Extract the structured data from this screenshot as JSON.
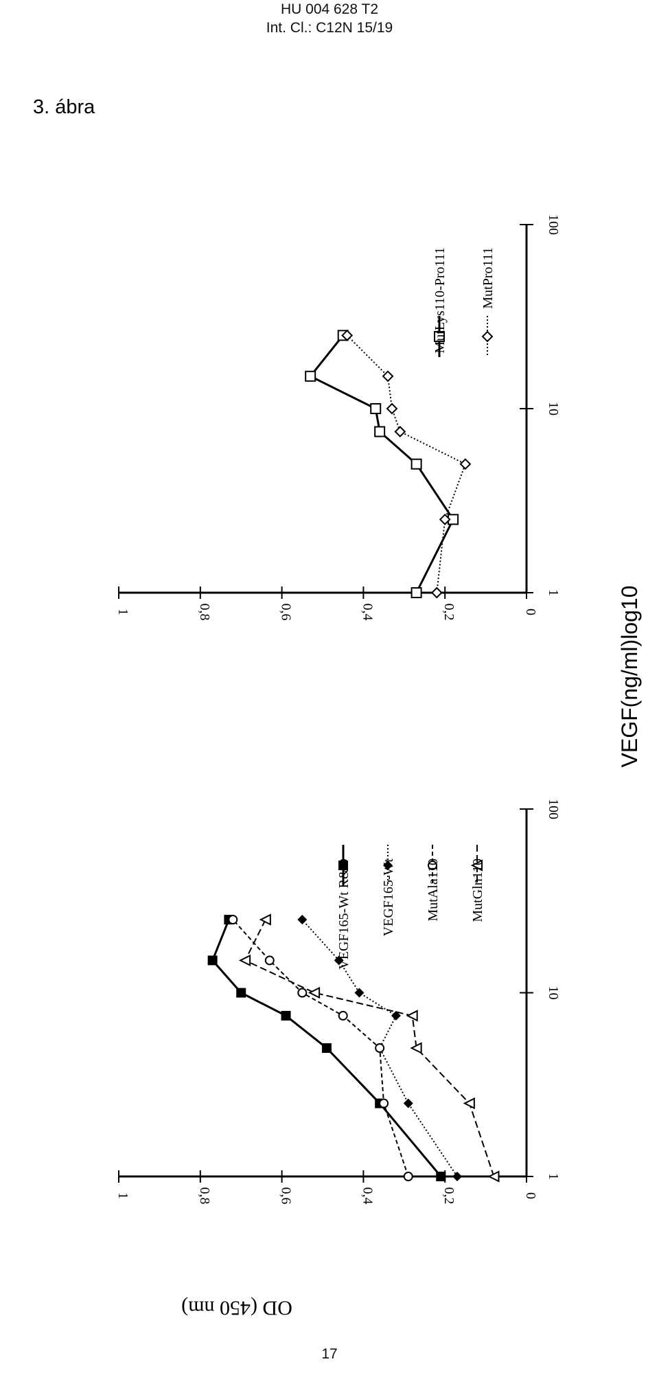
{
  "header": {
    "doc_number": "HU 004 628 T2",
    "classification": "Int. Cl.: C12N 15/19"
  },
  "figure_label": "3. ábra",
  "page_number": "17",
  "shared_axes": {
    "ylabel": "OD (450 nm)",
    "xlabel": "VEGF(ng/ml)log10"
  },
  "chart_data": [
    {
      "type": "line",
      "x_scale": "log",
      "xlim": [
        1,
        100
      ],
      "ylim": [
        0,
        1
      ],
      "x_ticks": [
        "1",
        "10",
        "100"
      ],
      "y_ticks": [
        "0",
        "0,2",
        "0,4",
        "0,6",
        "0,8",
        "1"
      ],
      "legend_position": "right",
      "series": [
        {
          "name": "VEGF165-Wt R&D",
          "marker": "filled-square",
          "line": "solid",
          "x": [
            1,
            2.5,
            5,
            7.5,
            10,
            15,
            25
          ],
          "y": [
            0.21,
            0.36,
            0.49,
            0.59,
            0.7,
            0.77,
            0.73
          ]
        },
        {
          "name": "VEGF165-Wt",
          "marker": "filled-diamond",
          "line": "dotted",
          "x": [
            1,
            2.5,
            5,
            7.5,
            10,
            15,
            25
          ],
          "y": [
            0.17,
            0.29,
            0.36,
            0.32,
            0.41,
            0.46,
            0.55
          ]
        },
        {
          "name": "MutAla110",
          "marker": "open-circle",
          "line": "dashed",
          "x": [
            1,
            2.5,
            5,
            7.5,
            10,
            15,
            25
          ],
          "y": [
            0.29,
            0.35,
            0.36,
            0.45,
            0.55,
            0.63,
            0.72
          ]
        },
        {
          "name": "MutGln110",
          "marker": "open-triangle",
          "line": "longdash",
          "x": [
            1,
            2.5,
            5,
            7.5,
            10,
            15,
            25
          ],
          "y": [
            0.08,
            0.14,
            0.27,
            0.28,
            0.52,
            0.69,
            0.64
          ]
        }
      ]
    },
    {
      "type": "line",
      "x_scale": "log",
      "xlim": [
        1,
        100
      ],
      "ylim": [
        0,
        1
      ],
      "x_ticks": [
        "1",
        "10",
        "100"
      ],
      "y_ticks": [
        "0",
        "0,2",
        "0,4",
        "0,6",
        "0,8",
        "1"
      ],
      "legend_position": "right",
      "series": [
        {
          "name": "MutLys110-Pro111",
          "marker": "open-square",
          "line": "solid",
          "x": [
            1,
            2.5,
            5,
            7.5,
            10,
            15,
            25
          ],
          "y": [
            0.27,
            0.18,
            0.27,
            0.36,
            0.37,
            0.53,
            0.45
          ]
        },
        {
          "name": "MutPro111",
          "marker": "open-diamond",
          "line": "dotted",
          "x": [
            1,
            2.5,
            5,
            7.5,
            10,
            15,
            25
          ],
          "y": [
            0.22,
            0.2,
            0.15,
            0.31,
            0.33,
            0.34,
            0.44
          ]
        }
      ]
    }
  ]
}
